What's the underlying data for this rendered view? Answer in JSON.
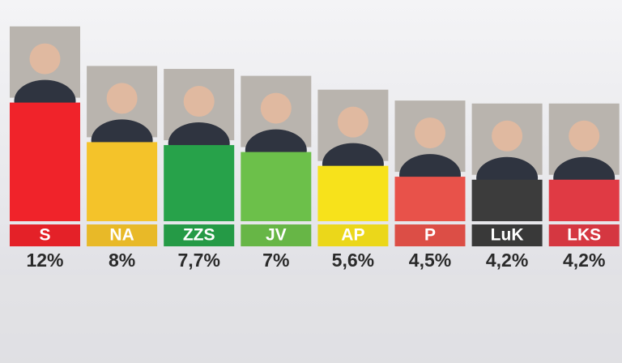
{
  "chart_data": {
    "type": "bar",
    "categories": [
      "S",
      "NA",
      "ZZS",
      "JV",
      "AP",
      "P",
      "LuK",
      "LKS"
    ],
    "values": [
      12,
      8,
      7.7,
      7,
      5.6,
      4.5,
      4.2,
      4.2
    ],
    "value_labels": [
      "12%",
      "8%",
      "7,7%",
      "7%",
      "5,6%",
      "4,5%",
      "4,2%",
      "4,2%"
    ],
    "colors": [
      "#f0232a",
      "#f4c32a",
      "#27a24a",
      "#6cc04a",
      "#f7e21b",
      "#e8524a",
      "#3c3c3c",
      "#e03a44"
    ]
  }
}
